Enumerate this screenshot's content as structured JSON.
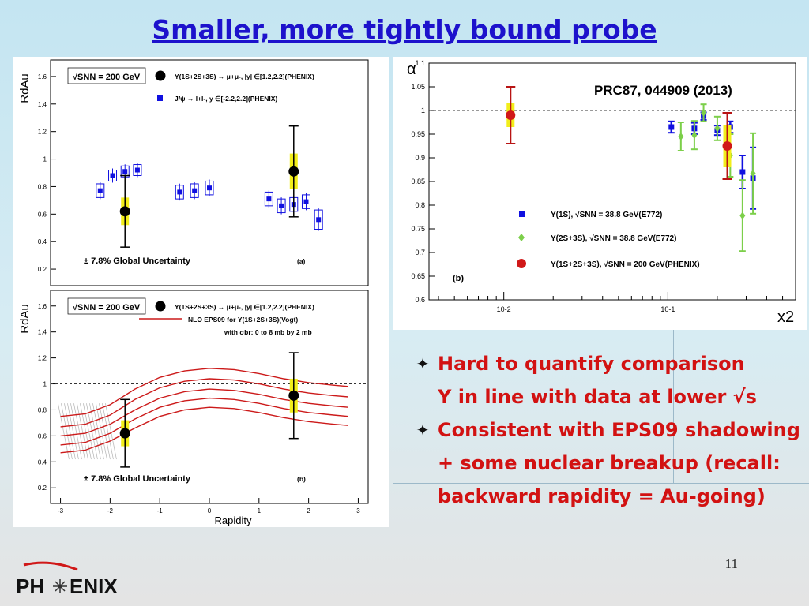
{
  "slide": {
    "title": "Smaller, more tightly bound probe",
    "page_number": "11"
  },
  "bullets": [
    {
      "marker": "✦",
      "text": "Hard to quantify comparison"
    },
    {
      "marker": "",
      "text": "Υ in line with data at lower √s"
    },
    {
      "marker": "✦",
      "text": "Consistent with EPS09 shadowing + some nuclear breakup (recall: backward rapidity = Au-going)"
    }
  ],
  "logo": {
    "text_left": "PH",
    "text_right": "ENIX"
  },
  "colors": {
    "title": "#1d12cc",
    "bullet_text": "#d21212",
    "phenix_red": "#d01818",
    "e772_blue": "#1010e0",
    "e772_green": "#7ccf4a",
    "syst_yellow": "#f2ee1a"
  },
  "chart_data": [
    {
      "type": "scatter",
      "panel": "(a)",
      "ylabel": "RdAu",
      "xlim": [
        -3.2,
        3.2
      ],
      "ylim": [
        0.08,
        1.72
      ],
      "yticks": [
        0.2,
        0.4,
        0.6,
        0.8,
        1.0,
        1.2,
        1.4,
        1.6
      ],
      "reference_line": 1.0,
      "legend": {
        "energy": "√SNN = 200 GeV",
        "entries": [
          "Υ(1S+2S+3S) → μ+μ-, |y| ∈[1.2,2.2](PHENIX)",
          "J/ψ → l+l-, y ∈[-2.2,2.2](PHENIX)"
        ]
      },
      "annotation": "± 7.8% Global Uncertainty",
      "series": [
        {
          "name": "Υ(1S+2S+3S) → μ+μ-, |y| ∈[1.2,2.2](PHENIX)",
          "points": [
            {
              "x": -1.7,
              "y": 0.62,
              "stat_low": 0.36,
              "stat_high": 0.88,
              "syst_low": 0.52,
              "syst_high": 0.72
            },
            {
              "x": 1.7,
              "y": 0.91,
              "stat_low": 0.58,
              "stat_high": 1.24,
              "syst_low": 0.78,
              "syst_high": 1.04
            }
          ]
        },
        {
          "name": "J/ψ → l+l-, y ∈[-2.2,2.2](PHENIX)",
          "points": [
            {
              "x": -2.2,
              "y": 0.77,
              "syst_low": 0.72,
              "syst_high": 0.82
            },
            {
              "x": -1.95,
              "y": 0.88,
              "syst_low": 0.84,
              "syst_high": 0.92
            },
            {
              "x": -1.7,
              "y": 0.91,
              "syst_low": 0.87,
              "syst_high": 0.95
            },
            {
              "x": -1.45,
              "y": 0.92,
              "syst_low": 0.88,
              "syst_high": 0.96
            },
            {
              "x": -0.6,
              "y": 0.76,
              "syst_low": 0.71,
              "syst_high": 0.81
            },
            {
              "x": -0.3,
              "y": 0.77,
              "syst_low": 0.72,
              "syst_high": 0.82
            },
            {
              "x": 0.0,
              "y": 0.79,
              "syst_low": 0.74,
              "syst_high": 0.84
            },
            {
              "x": 1.2,
              "y": 0.71,
              "syst_low": 0.66,
              "syst_high": 0.76
            },
            {
              "x": 1.45,
              "y": 0.66,
              "syst_low": 0.61,
              "syst_high": 0.71
            },
            {
              "x": 1.7,
              "y": 0.67,
              "syst_low": 0.62,
              "syst_high": 0.72
            },
            {
              "x": 1.95,
              "y": 0.69,
              "syst_low": 0.64,
              "syst_high": 0.74
            },
            {
              "x": 2.2,
              "y": 0.56,
              "syst_low": 0.49,
              "syst_high": 0.63
            }
          ]
        }
      ]
    },
    {
      "type": "line",
      "panel": "(b)",
      "ylabel": "RdAu",
      "xlabel": "Rapidity",
      "xlim": [
        -3.2,
        3.2
      ],
      "ylim": [
        0.08,
        1.72
      ],
      "xticks": [
        -3,
        -2,
        -1,
        0,
        1,
        2,
        3
      ],
      "yticks": [
        0.2,
        0.4,
        0.6,
        0.8,
        1.0,
        1.2,
        1.4,
        1.6
      ],
      "reference_line": 1.0,
      "legend": {
        "energy": "√SNN = 200 GeV",
        "entries": [
          "Υ(1S+2S+3S) → μ+μ-, |y| ∈[1.2,2.2](PHENIX)",
          "NLO EPS09 for Υ(1S+2S+3S)(Vogt)"
        ],
        "note": "with σbr: 0 to 8 mb by 2 mb"
      },
      "annotation": "± 7.8% Global Uncertainty",
      "series": [
        {
          "name": "Υ(1S+2S+3S) → μ+μ-, |y| ∈[1.2,2.2](PHENIX)",
          "points": [
            {
              "x": -1.7,
              "y": 0.62,
              "stat_low": 0.36,
              "stat_high": 0.88,
              "syst_low": 0.52,
              "syst_high": 0.72
            },
            {
              "x": 1.7,
              "y": 0.91,
              "stat_low": 0.58,
              "stat_high": 1.24,
              "syst_low": 0.78,
              "syst_high": 1.04
            }
          ]
        },
        {
          "name": "NLO EPS09 for Υ(1S+2S+3S)(Vogt)",
          "x": [
            -3.0,
            -2.5,
            -2.0,
            -1.5,
            -1.0,
            -0.5,
            0.0,
            0.5,
            1.0,
            1.5,
            2.0,
            2.5,
            2.8
          ],
          "curves": [
            [
              0.75,
              0.77,
              0.84,
              0.96,
              1.05,
              1.1,
              1.12,
              1.11,
              1.08,
              1.04,
              1.01,
              0.99,
              0.98
            ],
            [
              0.67,
              0.69,
              0.76,
              0.88,
              0.97,
              1.02,
              1.04,
              1.03,
              1.0,
              0.96,
              0.93,
              0.91,
              0.9
            ],
            [
              0.6,
              0.62,
              0.69,
              0.8,
              0.89,
              0.94,
              0.96,
              0.95,
              0.92,
              0.88,
              0.85,
              0.83,
              0.82
            ],
            [
              0.53,
              0.55,
              0.62,
              0.73,
              0.82,
              0.87,
              0.89,
              0.88,
              0.85,
              0.81,
              0.78,
              0.76,
              0.75
            ],
            [
              0.47,
              0.49,
              0.56,
              0.66,
              0.75,
              0.8,
              0.82,
              0.81,
              0.78,
              0.74,
              0.71,
              0.69,
              0.68
            ]
          ]
        }
      ]
    },
    {
      "type": "scatter",
      "panel": "(b)",
      "ylabel": "α",
      "xlabel": "x2",
      "x_scale": "log",
      "xlim": [
        0.0035,
        0.6
      ],
      "ylim": [
        0.6,
        1.1
      ],
      "xticks": [
        "10-2",
        "10-1"
      ],
      "yticks": [
        0.6,
        0.65,
        0.7,
        0.75,
        0.8,
        0.85,
        0.9,
        0.95,
        1.0,
        1.05,
        1.1
      ],
      "reference_line": 1.0,
      "annotation": "PRC87, 044909 (2013)",
      "series": [
        {
          "name": "Υ(1S), √SNN = 38.8 GeV(E772)",
          "points": [
            {
              "x": 0.105,
              "y": 0.965,
              "err": 0.012
            },
            {
              "x": 0.145,
              "y": 0.962,
              "err": 0.012
            },
            {
              "x": 0.165,
              "y": 0.988,
              "err": 0.008
            },
            {
              "x": 0.2,
              "y": 0.958,
              "err": 0.01
            },
            {
              "x": 0.24,
              "y": 0.965,
              "err": 0.012
            },
            {
              "x": 0.285,
              "y": 0.87,
              "err": 0.035
            },
            {
              "x": 0.33,
              "y": 0.857,
              "err": 0.065
            }
          ]
        },
        {
          "name": "Υ(2S+3S), √SNN = 38.8 GeV(E772)",
          "points": [
            {
              "x": 0.12,
              "y": 0.945,
              "err": 0.03
            },
            {
              "x": 0.145,
              "y": 0.948,
              "err": 0.03
            },
            {
              "x": 0.165,
              "y": 0.995,
              "err": 0.018
            },
            {
              "x": 0.2,
              "y": 0.962,
              "err": 0.025
            },
            {
              "x": 0.24,
              "y": 0.905,
              "err": 0.045
            },
            {
              "x": 0.285,
              "y": 0.778,
              "err": 0.075
            },
            {
              "x": 0.33,
              "y": 0.867,
              "err": 0.085
            }
          ]
        },
        {
          "name": "Υ(1S+2S+3S), √SNN = 200 GeV(PHENIX)",
          "points": [
            {
              "x": 0.011,
              "y": 0.99,
              "err_low": 0.06,
              "err_high": 0.06,
              "syst": 0.025
            },
            {
              "x": 0.23,
              "y": 0.925,
              "err_low": 0.07,
              "err_high": 0.07,
              "syst": 0.045
            }
          ]
        }
      ]
    }
  ]
}
